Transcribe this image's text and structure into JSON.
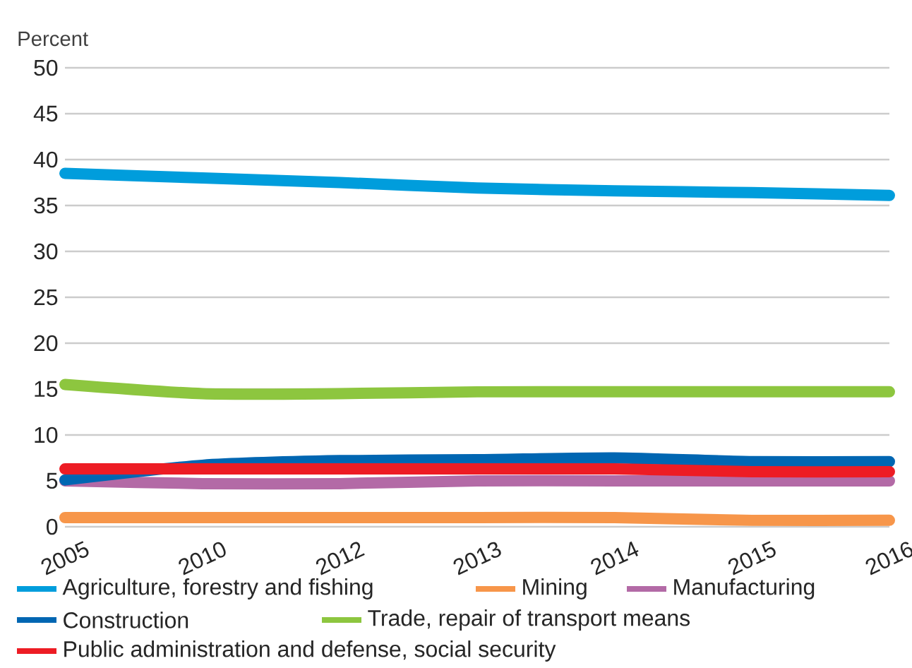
{
  "chart_data": {
    "type": "line",
    "ylabel": "Percent",
    "categories": [
      "2005",
      "2010",
      "2012",
      "2013",
      "2014",
      "2015",
      "2016"
    ],
    "series": [
      {
        "name": "Agriculture, forestry and fishing",
        "color": "#009ddc",
        "values": [
          38.5,
          38.0,
          37.5,
          36.9,
          36.6,
          36.4,
          36.1
        ]
      },
      {
        "name": "Mining",
        "color": "#f7964a",
        "values": [
          1.0,
          1.0,
          1.0,
          1.0,
          1.0,
          0.7,
          0.7
        ]
      },
      {
        "name": "Manufacturing",
        "color": "#b36aa6",
        "values": [
          5.0,
          4.7,
          4.7,
          5.0,
          5.0,
          5.0,
          5.0
        ]
      },
      {
        "name": "Construction",
        "color": "#0066b2",
        "values": [
          5.1,
          6.7,
          7.2,
          7.3,
          7.5,
          7.1,
          7.1
        ]
      },
      {
        "name": "Trade, repair of transport means",
        "color": "#8dc63f",
        "values": [
          15.5,
          14.5,
          14.5,
          14.7,
          14.7,
          14.7,
          14.7
        ]
      },
      {
        "name": "Public administration and defense, social security",
        "color": "#ed1c24",
        "values": [
          6.3,
          6.3,
          6.3,
          6.3,
          6.3,
          6.0,
          6.0
        ]
      }
    ],
    "ylim": [
      0,
      50
    ],
    "yticks": [
      0,
      5,
      10,
      15,
      20,
      25,
      30,
      35,
      40,
      45,
      50
    ],
    "grid": "y",
    "legend": "bottom",
    "line_style": "solid"
  }
}
